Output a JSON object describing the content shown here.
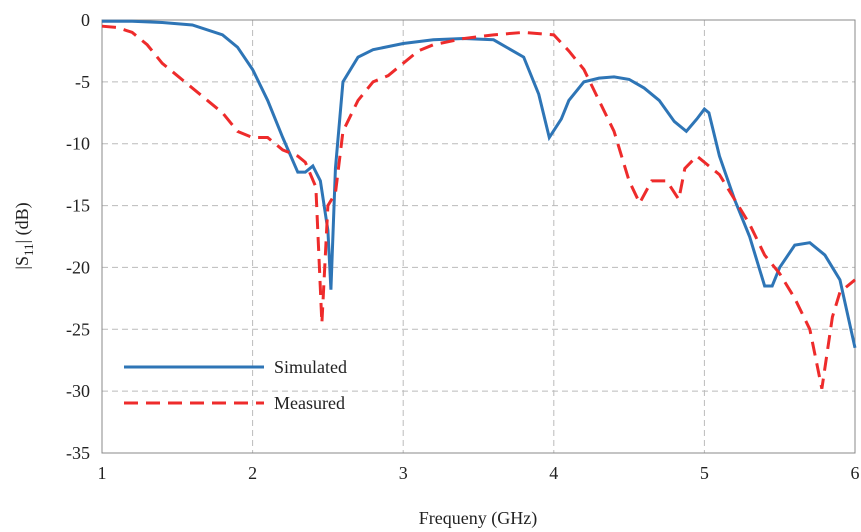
{
  "chart_data": {
    "type": "line",
    "xlabel": "Frequeny (GHz)",
    "ylabel": [
      "|S",
      "11",
      "| (dB)"
    ],
    "xlim": [
      1,
      6
    ],
    "xticks": [
      1,
      2,
      3,
      4,
      5,
      6
    ],
    "ylim": [
      -35,
      0
    ],
    "yticks": [
      0,
      -5,
      -10,
      -15,
      -20,
      -25,
      -30,
      -35
    ],
    "grid": true,
    "legend": "lower left",
    "series": [
      {
        "name": "Simulated",
        "color": "#2e75b6",
        "dash": false,
        "x": [
          1.0,
          1.2,
          1.4,
          1.6,
          1.8,
          1.9,
          2.0,
          2.1,
          2.2,
          2.3,
          2.35,
          2.4,
          2.45,
          2.5,
          2.52,
          2.55,
          2.6,
          2.7,
          2.8,
          3.0,
          3.2,
          3.4,
          3.6,
          3.8,
          3.9,
          3.97,
          4.05,
          4.1,
          4.2,
          4.3,
          4.4,
          4.5,
          4.6,
          4.7,
          4.8,
          4.88,
          4.95,
          5.0,
          5.03,
          5.1,
          5.2,
          5.3,
          5.4,
          5.45,
          5.5,
          5.6,
          5.7,
          5.8,
          5.9,
          6.0
        ],
        "values": [
          -0.1,
          -0.1,
          -0.2,
          -0.4,
          -1.2,
          -2.2,
          -4,
          -6.5,
          -9.5,
          -12.3,
          -12.3,
          -11.8,
          -13,
          -17,
          -21.8,
          -12,
          -5,
          -3,
          -2.4,
          -1.9,
          -1.6,
          -1.5,
          -1.6,
          -3,
          -6,
          -9.5,
          -8,
          -6.5,
          -5,
          -4.7,
          -4.6,
          -4.8,
          -5.5,
          -6.5,
          -8.2,
          -9,
          -8,
          -7.2,
          -7.5,
          -11,
          -14.5,
          -17.5,
          -21.5,
          -21.5,
          -20,
          -18.2,
          -18,
          -19,
          -21,
          -26.5
        ]
      },
      {
        "name": "Measured",
        "color": "#ee2b2b",
        "dash": true,
        "x": [
          1.0,
          1.1,
          1.2,
          1.3,
          1.4,
          1.5,
          1.6,
          1.7,
          1.8,
          1.9,
          2.0,
          2.1,
          2.2,
          2.3,
          2.35,
          2.42,
          2.46,
          2.5,
          2.55,
          2.6,
          2.7,
          2.8,
          2.9,
          3.0,
          3.1,
          3.2,
          3.4,
          3.6,
          3.8,
          4.0,
          4.1,
          4.2,
          4.3,
          4.4,
          4.5,
          4.57,
          4.65,
          4.75,
          4.83,
          4.87,
          4.95,
          5.0,
          5.1,
          5.2,
          5.3,
          5.4,
          5.5,
          5.6,
          5.7,
          5.78,
          5.85,
          5.9,
          6.0
        ],
        "values": [
          -0.5,
          -0.6,
          -1,
          -2,
          -3.5,
          -4.5,
          -5.5,
          -6.5,
          -7.5,
          -9,
          -9.5,
          -9.5,
          -10.5,
          -11,
          -11.5,
          -13.5,
          -24.5,
          -15,
          -14,
          -9,
          -6.5,
          -5,
          -4.5,
          -3.5,
          -2.5,
          -2,
          -1.5,
          -1.2,
          -1,
          -1.2,
          -2.5,
          -4,
          -6.5,
          -9,
          -13,
          -14.8,
          -13,
          -13,
          -14.5,
          -12,
          -11,
          -11.5,
          -12.5,
          -14.5,
          -16.5,
          -19,
          -20.5,
          -22.5,
          -25,
          -29.8,
          -24,
          -22,
          -21
        ]
      }
    ]
  }
}
